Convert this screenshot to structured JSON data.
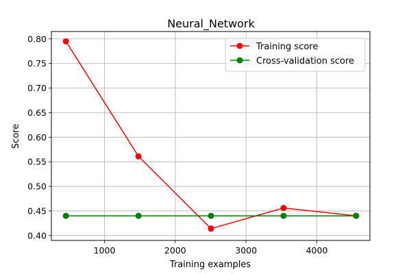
{
  "chart_data": {
    "type": "line",
    "title": "Neural_Network",
    "xlabel": "Training examples",
    "ylabel": "Score",
    "xlim": [
      250,
      4750
    ],
    "ylim": [
      0.39,
      0.815
    ],
    "xticks": [
      1000,
      2000,
      3000,
      4000
    ],
    "yticks": [
      0.4,
      0.45,
      0.5,
      0.55,
      0.6,
      0.65,
      0.7,
      0.75,
      0.8
    ],
    "grid": true,
    "legend": "upper right",
    "series": [
      {
        "name": "Training score",
        "color": "#ff0000",
        "marker": "circle",
        "x": [
          455,
          1480,
          2505,
          3530,
          4555
        ],
        "y": [
          0.795,
          0.561,
          0.414,
          0.456,
          0.44
        ]
      },
      {
        "name": "Cross-validation score",
        "color": "#008000",
        "marker": "circle",
        "x": [
          455,
          1480,
          2505,
          3530,
          4555
        ],
        "y": [
          0.44,
          0.44,
          0.44,
          0.44,
          0.44
        ]
      }
    ]
  }
}
